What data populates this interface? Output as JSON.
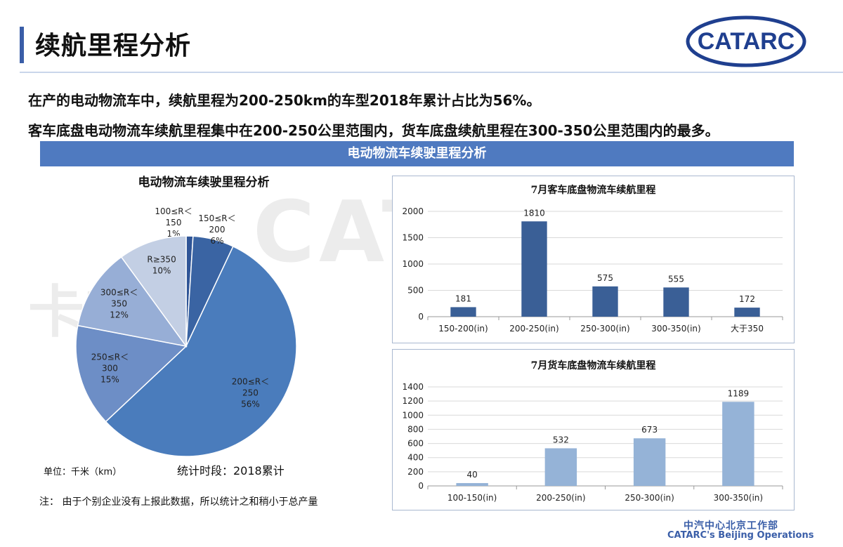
{
  "header": {
    "title": "续航里程分析",
    "logo_text": "CATARC"
  },
  "summary": {
    "line1": "在产的电动物流车中，续航里程为200-250km的车型2018年累计占比为56%。",
    "line2": "客车底盘电动物流车续航里程集中在200-250公里范围内，货车底盘续航里程在300-350公里范围内的最多。"
  },
  "section_band": "电动物流车续驶里程分析",
  "pie_panel": {
    "unit": "单位：千米（km）",
    "period": "统计时段：2018累计",
    "note": "注：  由于个别企业没有上报此数据，所以统计之和稍小于总产量"
  },
  "footer": {
    "line1": "中汽中心北京工作部",
    "line2": "CATARC's Beijing Operations"
  },
  "colors": {
    "accent": "#3a5ea8",
    "band": "#4f7ac0",
    "bar_dark": "#3a5f96",
    "bar_light": "#95b3d7",
    "pie": [
      "#2f5597",
      "#3a64a3",
      "#4a7cbc",
      "#6d8ec6",
      "#97aed6",
      "#c3cfe4"
    ]
  },
  "chart_data": [
    {
      "type": "pie",
      "title": "电动物流车续驶里程分析",
      "slices": [
        {
          "label": [
            "100≤R＜",
            "150",
            "1%"
          ],
          "value": 1
        },
        {
          "label": [
            "150≤R＜",
            "200",
            "6%"
          ],
          "value": 6
        },
        {
          "label": [
            "200≤R＜",
            "250",
            "56%"
          ],
          "value": 56
        },
        {
          "label": [
            "250≤R＜",
            "300",
            "15%"
          ],
          "value": 15
        },
        {
          "label": [
            "300≤R＜",
            "350",
            "12%"
          ],
          "value": 12
        },
        {
          "label": [
            "R≥350",
            "10%"
          ],
          "value": 10
        }
      ]
    },
    {
      "type": "bar",
      "title": "7月客车底盘物流车续航里程",
      "categories": [
        "150-200(in)",
        "200-250(in)",
        "250-300(in)",
        "300-350(in)",
        "大于350"
      ],
      "values": [
        181,
        1810,
        575,
        555,
        172
      ],
      "ylim": [
        0,
        2000
      ],
      "yticks": [
        0,
        500,
        1000,
        1500,
        2000
      ],
      "grid": true
    },
    {
      "type": "bar",
      "title": "7月货车底盘物流车续航里程",
      "categories": [
        "100-150(in)",
        "200-250(in)",
        "250-300(in)",
        "300-350(in)"
      ],
      "values": [
        40,
        532,
        673,
        1189
      ],
      "ylim": [
        0,
        1400
      ],
      "yticks": [
        0,
        200,
        400,
        600,
        800,
        1000,
        1200,
        1400
      ],
      "grid": true
    }
  ]
}
